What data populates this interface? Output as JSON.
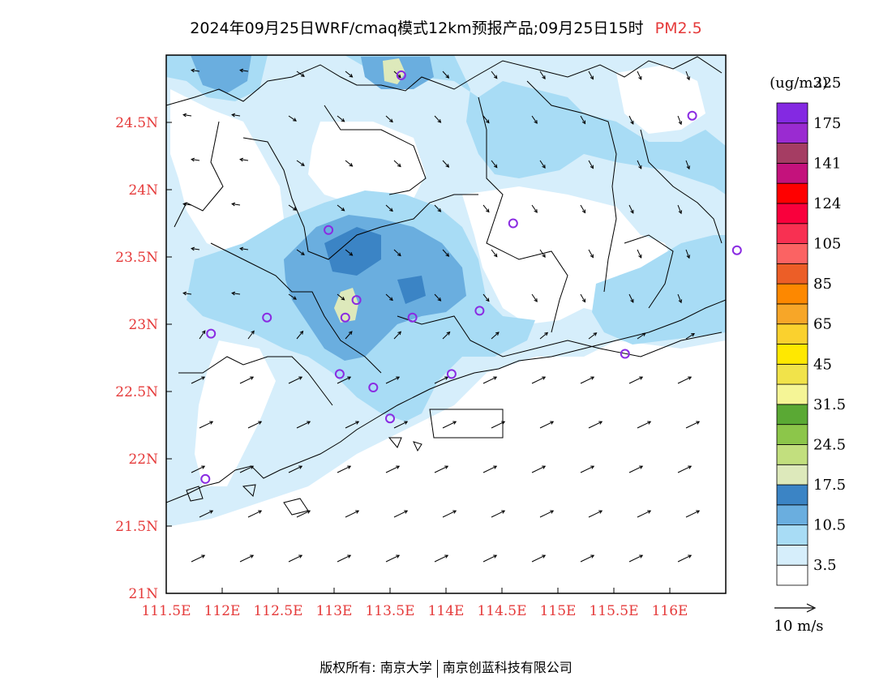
{
  "title": {
    "main": "2024年09月25日WRF/cmaq模式12km预报产品;09月25日15时",
    "species": "PM2.5"
  },
  "map": {
    "extent": {
      "lon": [
        111.5,
        116.5
      ],
      "lat": [
        21.0,
        25.0
      ]
    },
    "lon_ticks": [
      "111.5E",
      "112E",
      "112.5E",
      "113E",
      "113.5E",
      "114E",
      "114.5E",
      "115E",
      "115.5E",
      "116E"
    ],
    "lat_ticks": [
      "21N",
      "21.5N",
      "22N",
      "22.5N",
      "23N",
      "23.5N",
      "24N",
      "24.5N"
    ],
    "stations": [
      [
        113.6,
        24.85
      ],
      [
        116.2,
        24.55
      ],
      [
        112.95,
        23.7
      ],
      [
        114.6,
        23.75
      ],
      [
        116.6,
        23.55
      ],
      [
        113.2,
        23.18
      ],
      [
        113.1,
        23.05
      ],
      [
        112.4,
        23.05
      ],
      [
        111.9,
        22.93
      ],
      [
        113.7,
        23.05
      ],
      [
        114.3,
        23.1
      ],
      [
        115.6,
        22.78
      ],
      [
        113.05,
        22.63
      ],
      [
        113.35,
        22.53
      ],
      [
        114.05,
        22.63
      ],
      [
        113.5,
        22.3
      ],
      [
        111.85,
        21.85
      ]
    ]
  },
  "colorbar": {
    "unit": "(ug/m3)",
    "colors": [
      "#ffffff",
      "#d6eefb",
      "#a8dcf5",
      "#6aaedf",
      "#3b84c5",
      "#dde9bb",
      "#c2df7e",
      "#8cc64a",
      "#5aa934",
      "#f5f596",
      "#f1e34a",
      "#ffe800",
      "#fad12e",
      "#f7a628",
      "#fd8800",
      "#ec5e27",
      "#fb6363",
      "#f83052",
      "#f9003c",
      "#ff0000",
      "#c4127c",
      "#a53d63",
      "#9a2bd1",
      "#8429e2"
    ],
    "labels": [
      "3.5",
      "10.5",
      "17.5",
      "24.5",
      "31.5",
      "45",
      "65",
      "85",
      "105",
      "124",
      "141",
      "175",
      "225"
    ]
  },
  "wind": {
    "reference_label": "10 m/s"
  },
  "footer": {
    "left": "版权所有: 南京大学",
    "right": "南京创蓝科技有限公司"
  }
}
